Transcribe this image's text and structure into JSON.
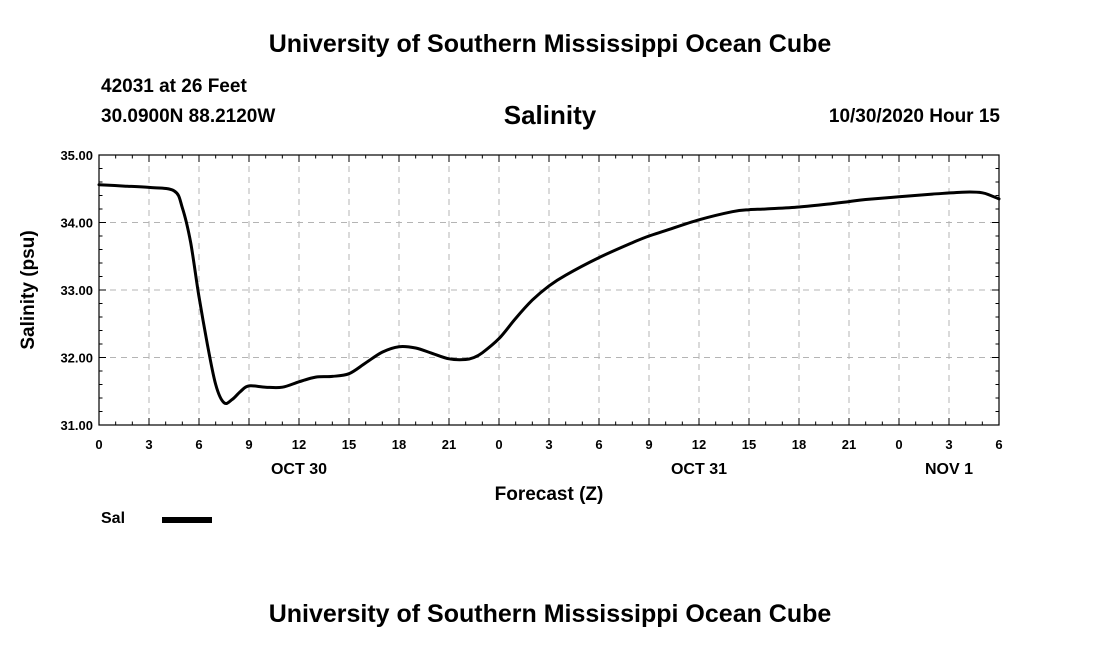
{
  "header": {
    "title_top": "University of Southern Mississippi Ocean Cube",
    "station": "42031 at 26 Feet",
    "coords": "30.0900N 88.2120W",
    "chart_title": "Salinity",
    "issue_time": "10/30/2020 Hour 15",
    "title_bottom": "University of Southern Mississippi Ocean Cube"
  },
  "legend": {
    "label": "Sal",
    "color": "#000000"
  },
  "chart_data": {
    "type": "line",
    "title": "Salinity",
    "xlabel": "Forecast (Z)",
    "ylabel": "Salinity (psu)",
    "ylim": [
      31.0,
      35.0
    ],
    "xlim": [
      0,
      54
    ],
    "grid": true,
    "legend_position": "bottom-left",
    "x_tick_values": [
      0,
      3,
      6,
      9,
      12,
      15,
      18,
      21,
      24,
      27,
      30,
      33,
      36,
      39,
      42,
      45,
      48,
      51,
      54
    ],
    "x_tick_labels": [
      "0",
      "3",
      "6",
      "9",
      "12",
      "15",
      "18",
      "21",
      "0",
      "3",
      "6",
      "9",
      "12",
      "15",
      "18",
      "21",
      "0",
      "3",
      "6"
    ],
    "y_tick_values": [
      31,
      32,
      33,
      34,
      35
    ],
    "y_tick_labels": [
      "31.00",
      "32.00",
      "33.00",
      "34.00",
      "35.00"
    ],
    "day_labels": [
      {
        "x": 12,
        "label": "OCT 30"
      },
      {
        "x": 36,
        "label": "OCT 31"
      },
      {
        "x": 51,
        "label": "NOV 1"
      }
    ],
    "series": [
      {
        "name": "Sal",
        "color": "#000000",
        "x": [
          0,
          1.5,
          3,
          4.5,
          5,
          5.5,
          6,
          6.5,
          7,
          7.5,
          8,
          8.5,
          9,
          10,
          11,
          12,
          13,
          14,
          15,
          16,
          17,
          18,
          19,
          20,
          21,
          22,
          22.5,
          23,
          24,
          25,
          26,
          27,
          28,
          30,
          32,
          33,
          34,
          36,
          38,
          39,
          40,
          42,
          44,
          45,
          46,
          48,
          50,
          52,
          53,
          53.5,
          54
        ],
        "y": [
          34.56,
          34.54,
          34.52,
          34.47,
          34.22,
          33.7,
          32.9,
          32.2,
          31.6,
          31.33,
          31.38,
          31.5,
          31.58,
          31.56,
          31.56,
          31.64,
          31.71,
          31.72,
          31.76,
          31.92,
          32.08,
          32.16,
          32.14,
          32.06,
          31.98,
          31.97,
          32.0,
          32.07,
          32.28,
          32.58,
          32.85,
          33.06,
          33.22,
          33.48,
          33.7,
          33.8,
          33.88,
          34.04,
          34.16,
          34.19,
          34.2,
          34.23,
          34.28,
          34.31,
          34.34,
          34.38,
          34.42,
          34.45,
          34.44,
          34.4,
          34.35
        ]
      }
    ]
  }
}
